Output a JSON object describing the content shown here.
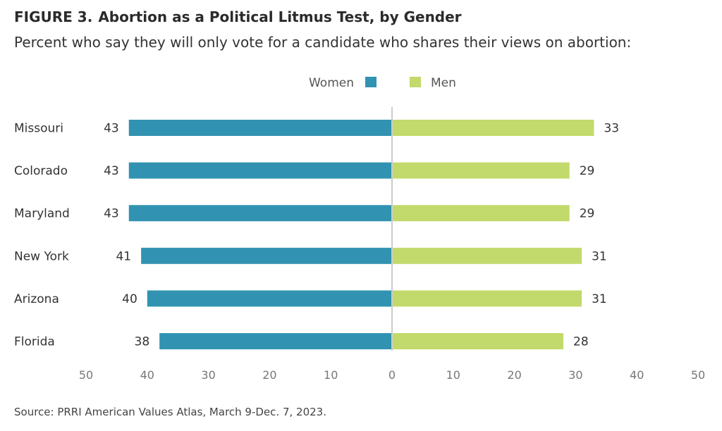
{
  "figure_label": "FIGURE 3.",
  "title": "Abortion as a Political Litmus Test, by Gender",
  "subtitle": "Percent who say they will only vote for a candidate who shares their views on abortion:",
  "source": "Source: PRRI American Values Atlas, March 9-Dec. 7, 2023.",
  "colors": {
    "women": "#3193b1",
    "men": "#c2da6b",
    "axis": "#cccccc",
    "text": "#444444"
  },
  "chart_data": {
    "type": "bar",
    "orientation": "horizontal-diverging",
    "categories": [
      "Missouri",
      "Colorado",
      "Maryland",
      "New York",
      "Arizona",
      "Florida"
    ],
    "series": [
      {
        "name": "Women",
        "values": [
          43,
          43,
          43,
          41,
          40,
          38
        ]
      },
      {
        "name": "Men",
        "values": [
          33,
          29,
          29,
          31,
          31,
          28
        ]
      }
    ],
    "xlim": [
      -50,
      50
    ],
    "tick_labels": [
      "50",
      "40",
      "30",
      "20",
      "10",
      "0",
      "10",
      "20",
      "30",
      "40",
      "50"
    ],
    "legend": "top-center",
    "grid": false
  }
}
